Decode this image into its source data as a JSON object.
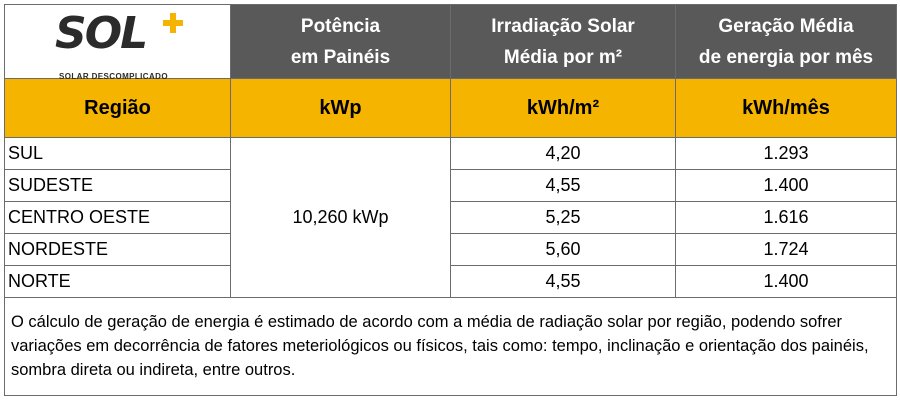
{
  "logo": {
    "word": "SOL",
    "tagline": "SOLAR DESCOMPLICADO",
    "accent_color": "#f4b400"
  },
  "headers": [
    {
      "line1": "Potência",
      "line2": "em Painéis"
    },
    {
      "line1": "Irradiação Solar",
      "line2": "Média por m²"
    },
    {
      "line1": "Geração Média",
      "line2": "de energia por mês"
    }
  ],
  "units": [
    "Região",
    "kWp",
    "kWh/m²",
    "kWh/mês"
  ],
  "power": "10,260 kWp",
  "rows": [
    {
      "region": "SUL",
      "irradiation": "4,20",
      "generation": "1.293"
    },
    {
      "region": "SUDESTE",
      "irradiation": "4,55",
      "generation": "1.400"
    },
    {
      "region": "CENTRO OESTE",
      "irradiation": "5,25",
      "generation": "1.616"
    },
    {
      "region": "NORDESTE",
      "irradiation": "5,60",
      "generation": "1.724"
    },
    {
      "region": "NORTE",
      "irradiation": "4,55",
      "generation": "1.400"
    }
  ],
  "note": "O cálculo de geração de energia é estimado de acordo com a média de radiação solar por região, podendo sofrer variações em decorrência de fatores meteriológicos ou físicos, tais como: tempo, inclinação e orientação dos painéis, sombra direta ou indireta, entre outros.",
  "colors": {
    "header_bg": "#595959",
    "unit_row_bg": "#f4b400",
    "border": "#6b6b6b"
  }
}
